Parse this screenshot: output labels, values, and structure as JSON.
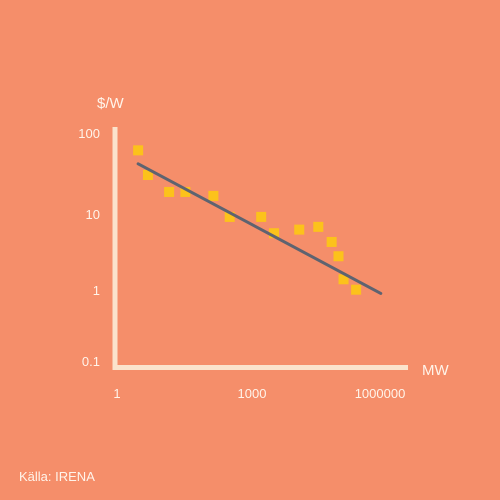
{
  "chart_data": {
    "type": "scatter",
    "xlabel": "MW",
    "ylabel": "$/W",
    "x_scale": "log",
    "y_scale": "log",
    "xlim": [
      1,
      1000000
    ],
    "ylim": [
      0.1,
      100
    ],
    "x_ticks": [
      "1",
      "1000",
      "1000000"
    ],
    "y_ticks": [
      "100",
      "10",
      "1",
      "0.1"
    ],
    "grid": false,
    "points": [
      {
        "x": 3,
        "y": 63
      },
      {
        "x": 5,
        "y": 30
      },
      {
        "x": 15,
        "y": 18
      },
      {
        "x": 35,
        "y": 18
      },
      {
        "x": 150,
        "y": 16
      },
      {
        "x": 350,
        "y": 8.5
      },
      {
        "x": 1800,
        "y": 8.5
      },
      {
        "x": 3500,
        "y": 5.2
      },
      {
        "x": 13000,
        "y": 5.8
      },
      {
        "x": 35000,
        "y": 6.3
      },
      {
        "x": 70000,
        "y": 4.0
      },
      {
        "x": 100000,
        "y": 2.6
      },
      {
        "x": 130000,
        "y": 1.3
      },
      {
        "x": 250000,
        "y": 0.95
      }
    ],
    "trendline": {
      "x": [
        3,
        900000
      ],
      "y": [
        42,
        0.85
      ]
    },
    "colors": {
      "background": "#F58E6A",
      "axis": "#FBE3CC",
      "points": "#FCC21B",
      "trendline": "#5E6370",
      "text": "#FFF4EA"
    }
  },
  "source": "Källa: IRENA"
}
